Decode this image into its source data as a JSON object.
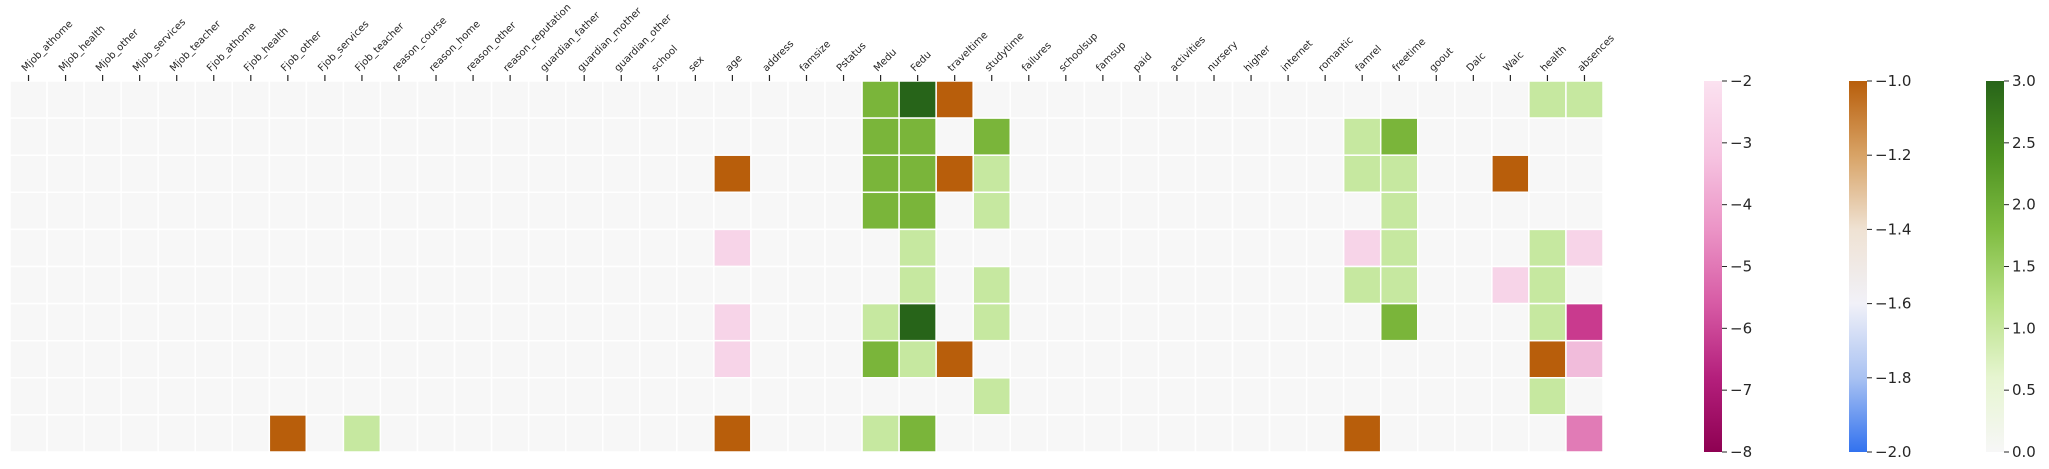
{
  "chart_data": {
    "type": "heatmap",
    "title": "",
    "xlabel": "",
    "ylabel": "",
    "columns": [
      "Mjob_athome",
      "Mjob_health",
      "Mjob_other",
      "Mjob_services",
      "Mjob_teacher",
      "Fjob_athome",
      "Fjob_health",
      "Fjob_other",
      "Fjob_services",
      "Fjob_teacher",
      "reason_course",
      "reason_home",
      "reason_other",
      "reason_reputation",
      "guardian_father",
      "guardian_mother",
      "guardian_other",
      "school",
      "sex",
      "age",
      "address",
      "famsize",
      "Pstatus",
      "Medu",
      "Fedu",
      "traveltime",
      "studytime",
      "failures",
      "schoolsup",
      "famsup",
      "paid",
      "activities",
      "nursery",
      "higher",
      "internet",
      "romantic",
      "famrel",
      "freetime",
      "goout",
      "Dalc",
      "Walc",
      "health",
      "absences"
    ],
    "rows": 10,
    "grid": false,
    "background_color": "#f7f7f7",
    "cells": [
      {
        "row": 0,
        "col": "Medu",
        "color": "#7ab53a"
      },
      {
        "row": 0,
        "col": "Fedu",
        "color": "#276419"
      },
      {
        "row": 0,
        "col": "traveltime",
        "color": "#b85e0b"
      },
      {
        "row": 0,
        "col": "health",
        "color": "#c6e8a0"
      },
      {
        "row": 0,
        "col": "absences",
        "color": "#c6e8a0"
      },
      {
        "row": 1,
        "col": "Medu",
        "color": "#7ab53a"
      },
      {
        "row": 1,
        "col": "Fedu",
        "color": "#7ab53a"
      },
      {
        "row": 1,
        "col": "studytime",
        "color": "#7ab53a"
      },
      {
        "row": 1,
        "col": "famrel",
        "color": "#c6e8a0"
      },
      {
        "row": 1,
        "col": "freetime",
        "color": "#7ab53a"
      },
      {
        "row": 2,
        "col": "age",
        "color": "#b85e0b"
      },
      {
        "row": 2,
        "col": "Medu",
        "color": "#7ab53a"
      },
      {
        "row": 2,
        "col": "Fedu",
        "color": "#7ab53a"
      },
      {
        "row": 2,
        "col": "traveltime",
        "color": "#b85e0b"
      },
      {
        "row": 2,
        "col": "studytime",
        "color": "#c6e8a0"
      },
      {
        "row": 2,
        "col": "famrel",
        "color": "#c6e8a0"
      },
      {
        "row": 2,
        "col": "freetime",
        "color": "#c6e8a0"
      },
      {
        "row": 2,
        "col": "Walc",
        "color": "#b85e0b"
      },
      {
        "row": 3,
        "col": "Medu",
        "color": "#7ab53a"
      },
      {
        "row": 3,
        "col": "Fedu",
        "color": "#7ab53a"
      },
      {
        "row": 3,
        "col": "studytime",
        "color": "#c6e8a0"
      },
      {
        "row": 3,
        "col": "freetime",
        "color": "#c6e8a0"
      },
      {
        "row": 4,
        "col": "age",
        "color": "#f7d4e8"
      },
      {
        "row": 4,
        "col": "Fedu",
        "color": "#c6e8a0"
      },
      {
        "row": 4,
        "col": "famrel",
        "color": "#f7d4e8"
      },
      {
        "row": 4,
        "col": "freetime",
        "color": "#c6e8a0"
      },
      {
        "row": 4,
        "col": "health",
        "color": "#c6e8a0"
      },
      {
        "row": 4,
        "col": "absences",
        "color": "#f7d4e8"
      },
      {
        "row": 5,
        "col": "Fedu",
        "color": "#c6e8a0"
      },
      {
        "row": 5,
        "col": "studytime",
        "color": "#c6e8a0"
      },
      {
        "row": 5,
        "col": "famrel",
        "color": "#c6e8a0"
      },
      {
        "row": 5,
        "col": "freetime",
        "color": "#c6e8a0"
      },
      {
        "row": 5,
        "col": "Walc",
        "color": "#f7d4e8"
      },
      {
        "row": 5,
        "col": "health",
        "color": "#c6e8a0"
      },
      {
        "row": 6,
        "col": "age",
        "color": "#f7d4e8"
      },
      {
        "row": 6,
        "col": "Medu",
        "color": "#c6e8a0"
      },
      {
        "row": 6,
        "col": "Fedu",
        "color": "#276419"
      },
      {
        "row": 6,
        "col": "studytime",
        "color": "#c6e8a0"
      },
      {
        "row": 6,
        "col": "freetime",
        "color": "#7ab53a"
      },
      {
        "row": 6,
        "col": "health",
        "color": "#c6e8a0"
      },
      {
        "row": 6,
        "col": "absences",
        "color": "#c93a8e"
      },
      {
        "row": 7,
        "col": "age",
        "color": "#f7d4e8"
      },
      {
        "row": 7,
        "col": "Medu",
        "color": "#7ab53a"
      },
      {
        "row": 7,
        "col": "Fedu",
        "color": "#c6e8a0"
      },
      {
        "row": 7,
        "col": "traveltime",
        "color": "#b85e0b"
      },
      {
        "row": 7,
        "col": "health",
        "color": "#b85e0b"
      },
      {
        "row": 7,
        "col": "absences",
        "color": "#f1bcdb"
      },
      {
        "row": 8,
        "col": "studytime",
        "color": "#c6e8a0"
      },
      {
        "row": 8,
        "col": "health",
        "color": "#c6e8a0"
      },
      {
        "row": 9,
        "col": "Fjob_other",
        "color": "#b85e0b"
      },
      {
        "row": 9,
        "col": "Fjob_teacher",
        "color": "#c6e8a0"
      },
      {
        "row": 9,
        "col": "age",
        "color": "#b85e0b"
      },
      {
        "row": 9,
        "col": "Medu",
        "color": "#c6e8a0"
      },
      {
        "row": 9,
        "col": "Fedu",
        "color": "#7ab53a"
      },
      {
        "row": 9,
        "col": "famrel",
        "color": "#b85e0b"
      },
      {
        "row": 9,
        "col": "absences",
        "color": "#e17bb6"
      }
    ],
    "colorbars": [
      {
        "name": "pink",
        "range": [
          -8,
          -2
        ],
        "ticks": [
          "−2",
          "−3",
          "−4",
          "−5",
          "−6",
          "−7",
          "−8"
        ],
        "tick_values": [
          -2,
          -3,
          -4,
          -5,
          -6,
          -7,
          -8
        ],
        "colors_top_to_bottom": [
          "#fbe2f0",
          "#f6c4e1",
          "#eb94c6",
          "#d75ba5",
          "#b41f7c",
          "#8e0152"
        ]
      },
      {
        "name": "orange-blue",
        "range": [
          -2.0,
          -1.0
        ],
        "ticks": [
          "−1.0",
          "−1.2",
          "−1.4",
          "−1.6",
          "−1.8",
          "−2.0"
        ],
        "tick_values": [
          -1.0,
          -1.2,
          -1.4,
          -1.6,
          -1.8,
          -2.0
        ],
        "colors_top_to_bottom": [
          "#b85e0b",
          "#d8a366",
          "#efe2d3",
          "#f1f1f8",
          "#a9c2f2",
          "#3272ef"
        ]
      },
      {
        "name": "green",
        "range": [
          0.0,
          3.0
        ],
        "ticks": [
          "3.0",
          "2.5",
          "2.0",
          "1.5",
          "1.0",
          "0.5",
          "0.0"
        ],
        "tick_values": [
          3.0,
          2.5,
          2.0,
          1.5,
          1.0,
          0.5,
          0.0
        ],
        "colors_top_to_bottom": [
          "#276419",
          "#4d9221",
          "#7fbc41",
          "#b8e186",
          "#e6f5d0",
          "#f7f7f7"
        ]
      }
    ]
  }
}
